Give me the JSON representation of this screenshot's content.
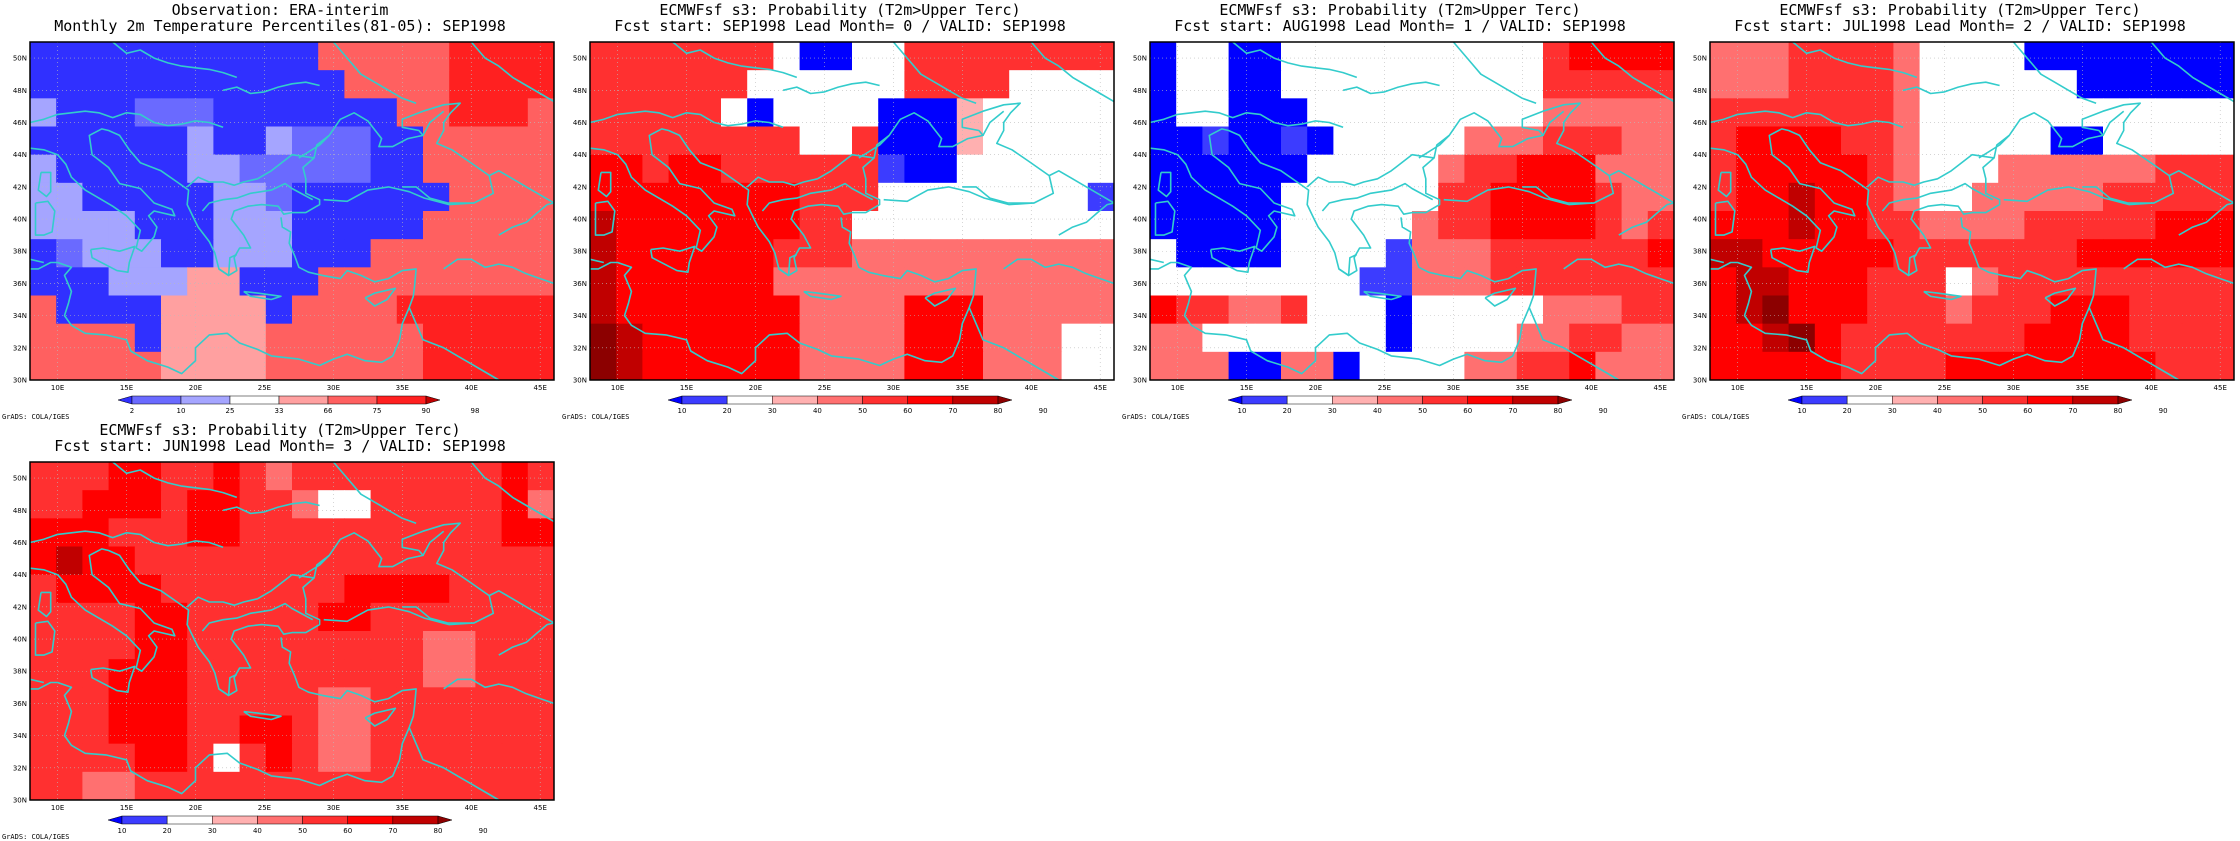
{
  "colors": {
    "levels_obs": [
      "#3030ff",
      "#6a6aff",
      "#a5a5ff",
      "#ffffff",
      "#ffa0a0",
      "#ff6060",
      "#ff2020",
      "#c00000"
    ],
    "levels_prob": [
      "#0000ff",
      "#3c3cff",
      "#ffffff",
      "#ffb0b0",
      "#ff7070",
      "#ff3030",
      "#ff0000",
      "#c00000",
      "#8c0000"
    ],
    "coast": "#33cccc",
    "frame": "#000000"
  },
  "map_axes": {
    "lon_labels": [
      "10E",
      "15E",
      "20E",
      "25E",
      "30E",
      "35E",
      "40E",
      "45E"
    ],
    "lat_labels": [
      "30N",
      "32N",
      "34N",
      "36N",
      "38N",
      "40N",
      "42N",
      "44N",
      "46N",
      "48N",
      "50N"
    ],
    "lon_range": [
      8,
      46
    ],
    "lat_range": [
      30,
      51
    ]
  },
  "panels": [
    {
      "title_line1": "Observation: ERA-interim",
      "title_line2": "Monthly 2m Temperature Percentiles(81-05): SEP1998",
      "colorbar_labels": [
        "2",
        "10",
        "25",
        "33",
        "66",
        "75",
        "90",
        "98"
      ],
      "credit": "GrADS: COLA/IGES",
      "grid": [
        [
          0,
          0,
          0,
          0,
          0,
          0,
          0,
          0,
          0,
          0,
          0,
          5,
          5,
          5,
          5,
          5,
          6,
          6,
          6,
          6
        ],
        [
          0,
          0,
          0,
          0,
          0,
          0,
          0,
          0,
          0,
          0,
          0,
          0,
          5,
          5,
          5,
          5,
          6,
          6,
          6,
          6
        ],
        [
          2,
          0,
          0,
          0,
          1,
          1,
          1,
          0,
          0,
          0,
          0,
          0,
          0,
          0,
          5,
          5,
          6,
          6,
          6,
          5
        ],
        [
          0,
          0,
          0,
          0,
          0,
          0,
          2,
          0,
          0,
          2,
          1,
          1,
          1,
          0,
          0,
          5,
          5,
          5,
          5,
          5
        ],
        [
          2,
          0,
          0,
          0,
          0,
          0,
          2,
          2,
          1,
          1,
          1,
          1,
          1,
          0,
          0,
          5,
          5,
          5,
          5,
          5
        ],
        [
          2,
          2,
          0,
          0,
          0,
          0,
          0,
          2,
          2,
          1,
          0,
          0,
          0,
          0,
          0,
          0,
          5,
          5,
          5,
          5
        ],
        [
          2,
          2,
          2,
          2,
          0,
          0,
          0,
          2,
          2,
          2,
          0,
          0,
          0,
          0,
          0,
          5,
          5,
          5,
          5,
          5
        ],
        [
          0,
          1,
          2,
          2,
          2,
          0,
          0,
          2,
          2,
          2,
          0,
          0,
          0,
          5,
          5,
          5,
          5,
          5,
          5,
          5
        ],
        [
          0,
          0,
          0,
          2,
          2,
          2,
          4,
          4,
          0,
          0,
          0,
          5,
          5,
          5,
          5,
          5,
          5,
          5,
          5,
          5
        ],
        [
          5,
          0,
          0,
          0,
          0,
          4,
          4,
          4,
          4,
          0,
          5,
          5,
          5,
          5,
          6,
          6,
          6,
          6,
          6,
          6
        ],
        [
          5,
          5,
          5,
          5,
          0,
          4,
          4,
          4,
          4,
          5,
          5,
          5,
          5,
          5,
          5,
          6,
          6,
          6,
          6,
          6
        ],
        [
          5,
          5,
          5,
          5,
          5,
          4,
          4,
          4,
          4,
          5,
          5,
          5,
          5,
          5,
          5,
          6,
          6,
          6,
          6,
          6
        ]
      ]
    },
    {
      "title_line1": "ECMWFsf s3: Probability (T2m>Upper Terc)",
      "title_line2": "Fcst start: SEP1998  Lead Month= 0 / VALID: SEP1998",
      "colorbar_labels": [
        "10",
        "20",
        "30",
        "40",
        "50",
        "60",
        "70",
        "80",
        "90"
      ],
      "credit": "GrADS: COLA/IGES",
      "grid": [
        [
          5,
          5,
          5,
          5,
          5,
          5,
          5,
          2,
          0,
          0,
          2,
          2,
          5,
          5,
          5,
          5,
          5,
          5,
          5,
          5
        ],
        [
          5,
          5,
          5,
          5,
          5,
          5,
          2,
          2,
          2,
          2,
          2,
          2,
          5,
          5,
          5,
          5,
          2,
          2,
          2,
          2
        ],
        [
          5,
          5,
          5,
          5,
          5,
          2,
          0,
          2,
          2,
          2,
          2,
          0,
          0,
          0,
          3,
          2,
          2,
          2,
          2,
          2
        ],
        [
          5,
          5,
          5,
          5,
          5,
          5,
          5,
          5,
          2,
          2,
          5,
          0,
          0,
          0,
          3,
          2,
          2,
          2,
          2,
          2
        ],
        [
          6,
          6,
          5,
          6,
          6,
          5,
          5,
          5,
          5,
          5,
          5,
          1,
          0,
          0,
          2,
          2,
          2,
          2,
          2,
          2
        ],
        [
          6,
          6,
          6,
          6,
          6,
          6,
          6,
          6,
          5,
          5,
          5,
          2,
          2,
          2,
          2,
          2,
          2,
          2,
          2,
          1
        ],
        [
          7,
          6,
          6,
          6,
          6,
          6,
          6,
          6,
          5,
          5,
          2,
          2,
          2,
          2,
          2,
          2,
          2,
          2,
          2,
          2
        ],
        [
          7,
          6,
          6,
          6,
          6,
          6,
          6,
          5,
          5,
          5,
          4,
          4,
          4,
          4,
          4,
          4,
          4,
          4,
          4,
          4
        ],
        [
          7,
          6,
          6,
          6,
          6,
          6,
          6,
          4,
          4,
          4,
          4,
          4,
          4,
          4,
          4,
          4,
          4,
          4,
          4,
          4
        ],
        [
          7,
          6,
          6,
          6,
          6,
          6,
          6,
          6,
          4,
          4,
          4,
          4,
          6,
          6,
          6,
          4,
          4,
          4,
          4,
          4
        ],
        [
          8,
          7,
          6,
          6,
          6,
          6,
          6,
          6,
          4,
          4,
          4,
          4,
          6,
          6,
          6,
          4,
          4,
          4,
          2,
          2
        ],
        [
          8,
          7,
          6,
          6,
          6,
          6,
          6,
          6,
          4,
          4,
          4,
          4,
          6,
          6,
          6,
          4,
          4,
          4,
          2,
          2
        ]
      ]
    },
    {
      "title_line1": "ECMWFsf s3: Probability (T2m>Upper Terc)",
      "title_line2": "Fcst start: AUG1998  Lead Month= 1 / VALID: SEP1998",
      "colorbar_labels": [
        "10",
        "20",
        "30",
        "40",
        "50",
        "60",
        "70",
        "80",
        "90"
      ],
      "credit": "GrADS: COLA/IGES",
      "grid": [
        [
          0,
          2,
          2,
          0,
          0,
          2,
          2,
          2,
          2,
          2,
          2,
          2,
          2,
          2,
          2,
          5,
          6,
          6,
          6,
          6
        ],
        [
          0,
          2,
          2,
          0,
          0,
          2,
          2,
          2,
          2,
          2,
          2,
          2,
          2,
          2,
          2,
          5,
          5,
          5,
          5,
          5
        ],
        [
          0,
          2,
          2,
          0,
          0,
          0,
          2,
          2,
          2,
          2,
          2,
          2,
          2,
          2,
          2,
          4,
          4,
          4,
          4,
          4
        ],
        [
          0,
          0,
          1,
          0,
          0,
          1,
          0,
          2,
          2,
          2,
          2,
          2,
          4,
          4,
          4,
          5,
          5,
          5,
          4,
          4
        ],
        [
          0,
          0,
          0,
          0,
          0,
          0,
          2,
          2,
          2,
          2,
          2,
          4,
          5,
          5,
          6,
          6,
          6,
          4,
          4,
          4
        ],
        [
          0,
          0,
          0,
          0,
          0,
          2,
          2,
          2,
          2,
          2,
          2,
          5,
          5,
          6,
          6,
          6,
          6,
          5,
          4,
          4
        ],
        [
          0,
          0,
          0,
          0,
          0,
          2,
          2,
          2,
          2,
          2,
          4,
          5,
          5,
          6,
          6,
          6,
          6,
          5,
          4,
          5
        ],
        [
          2,
          0,
          0,
          0,
          0,
          2,
          2,
          2,
          2,
          1,
          4,
          4,
          4,
          5,
          5,
          5,
          5,
          5,
          5,
          6
        ],
        [
          2,
          2,
          2,
          2,
          2,
          2,
          2,
          2,
          1,
          1,
          4,
          4,
          4,
          5,
          5,
          5,
          5,
          5,
          5,
          5
        ],
        [
          6,
          5,
          5,
          4,
          4,
          5,
          2,
          2,
          2,
          0,
          2,
          2,
          2,
          2,
          2,
          4,
          4,
          4,
          5,
          5
        ],
        [
          4,
          4,
          2,
          2,
          2,
          2,
          2,
          2,
          2,
          0,
          2,
          2,
          2,
          2,
          4,
          4,
          5,
          5,
          4,
          4
        ],
        [
          4,
          4,
          4,
          0,
          0,
          4,
          4,
          0,
          2,
          2,
          2,
          2,
          4,
          4,
          5,
          5,
          6,
          4,
          4,
          4
        ]
      ]
    },
    {
      "title_line1": "ECMWFsf s3: Probability (T2m>Upper Terc)",
      "title_line2": "Fcst start: JUL1998  Lead Month= 2 / VALID: SEP1998",
      "colorbar_labels": [
        "10",
        "20",
        "30",
        "40",
        "50",
        "60",
        "70",
        "80",
        "90"
      ],
      "credit": "GrADS: COLA/IGES",
      "grid": [
        [
          4,
          4,
          4,
          5,
          5,
          5,
          5,
          4,
          2,
          2,
          2,
          2,
          0,
          0,
          0,
          0,
          0,
          0,
          0,
          0
        ],
        [
          4,
          4,
          4,
          5,
          5,
          5,
          5,
          4,
          2,
          2,
          2,
          2,
          2,
          2,
          0,
          0,
          0,
          0,
          0,
          0
        ],
        [
          5,
          5,
          5,
          5,
          5,
          5,
          5,
          4,
          2,
          2,
          2,
          2,
          2,
          2,
          2,
          2,
          2,
          2,
          2,
          2
        ],
        [
          5,
          6,
          6,
          6,
          6,
          5,
          5,
          4,
          2,
          2,
          2,
          2,
          2,
          0,
          0,
          2,
          2,
          2,
          2,
          2
        ],
        [
          5,
          6,
          6,
          6,
          6,
          6,
          5,
          4,
          2,
          2,
          2,
          4,
          4,
          4,
          4,
          4,
          4,
          5,
          5,
          5
        ],
        [
          5,
          6,
          6,
          7,
          6,
          6,
          5,
          4,
          2,
          2,
          4,
          4,
          4,
          4,
          4,
          5,
          5,
          5,
          5,
          5
        ],
        [
          6,
          6,
          6,
          7,
          6,
          6,
          5,
          5,
          4,
          4,
          4,
          4,
          5,
          5,
          5,
          5,
          5,
          6,
          6,
          6
        ],
        [
          7,
          7,
          6,
          6,
          6,
          6,
          6,
          5,
          5,
          5,
          5,
          5,
          5,
          5,
          6,
          6,
          6,
          6,
          6,
          6
        ],
        [
          6,
          7,
          7,
          6,
          6,
          6,
          5,
          5,
          5,
          2,
          4,
          5,
          5,
          5,
          5,
          5,
          5,
          5,
          5,
          5
        ],
        [
          6,
          7,
          8,
          6,
          6,
          6,
          5,
          5,
          5,
          4,
          5,
          5,
          5,
          6,
          6,
          6,
          5,
          5,
          5,
          5
        ],
        [
          6,
          6,
          7,
          8,
          6,
          5,
          5,
          5,
          5,
          5,
          5,
          5,
          6,
          6,
          6,
          6,
          5,
          5,
          5,
          5
        ],
        [
          6,
          6,
          6,
          6,
          6,
          5,
          5,
          5,
          5,
          6,
          6,
          6,
          6,
          6,
          6,
          6,
          6,
          5,
          5,
          5
        ]
      ]
    },
    {
      "title_line1": "ECMWFsf s3: Probability (T2m>Upper Terc)",
      "title_line2": "Fcst start: JUN1998  Lead Month= 3 / VALID: SEP1998",
      "colorbar_labels": [
        "10",
        "20",
        "30",
        "40",
        "50",
        "60",
        "70",
        "80",
        "90"
      ],
      "credit": "GrADS: COLA/IGES",
      "grid": [
        [
          5,
          5,
          5,
          6,
          6,
          5,
          5,
          6,
          5,
          4,
          5,
          5,
          5,
          5,
          5,
          5,
          5,
          5,
          6,
          5
        ],
        [
          5,
          5,
          6,
          6,
          6,
          5,
          6,
          6,
          5,
          5,
          4,
          2,
          2,
          5,
          5,
          5,
          5,
          5,
          6,
          4
        ],
        [
          6,
          6,
          6,
          5,
          5,
          5,
          6,
          6,
          5,
          5,
          5,
          5,
          5,
          5,
          5,
          5,
          5,
          5,
          6,
          6
        ],
        [
          6,
          7,
          6,
          6,
          5,
          5,
          5,
          5,
          5,
          5,
          5,
          5,
          5,
          5,
          5,
          5,
          5,
          5,
          5,
          5
        ],
        [
          5,
          6,
          6,
          6,
          6,
          5,
          5,
          5,
          5,
          5,
          5,
          5,
          6,
          6,
          6,
          6,
          5,
          5,
          5,
          5
        ],
        [
          5,
          5,
          5,
          5,
          6,
          6,
          5,
          5,
          5,
          5,
          5,
          6,
          6,
          5,
          5,
          5,
          5,
          5,
          5,
          5
        ],
        [
          5,
          5,
          5,
          5,
          6,
          6,
          5,
          5,
          5,
          5,
          5,
          5,
          5,
          5,
          5,
          4,
          4,
          5,
          5,
          5
        ],
        [
          5,
          5,
          5,
          6,
          6,
          6,
          5,
          5,
          5,
          5,
          5,
          5,
          5,
          5,
          5,
          4,
          4,
          5,
          5,
          5
        ],
        [
          5,
          5,
          5,
          6,
          6,
          6,
          5,
          5,
          5,
          5,
          5,
          4,
          4,
          5,
          5,
          5,
          5,
          5,
          5,
          5
        ],
        [
          5,
          5,
          5,
          6,
          6,
          6,
          5,
          5,
          6,
          6,
          5,
          4,
          4,
          5,
          5,
          5,
          5,
          5,
          5,
          5
        ],
        [
          5,
          5,
          5,
          5,
          6,
          6,
          5,
          2,
          5,
          6,
          5,
          4,
          4,
          5,
          5,
          5,
          5,
          5,
          5,
          5
        ],
        [
          5,
          5,
          4,
          4,
          5,
          5,
          5,
          5,
          5,
          5,
          5,
          5,
          5,
          5,
          5,
          5,
          5,
          5,
          5,
          5
        ]
      ]
    }
  ]
}
